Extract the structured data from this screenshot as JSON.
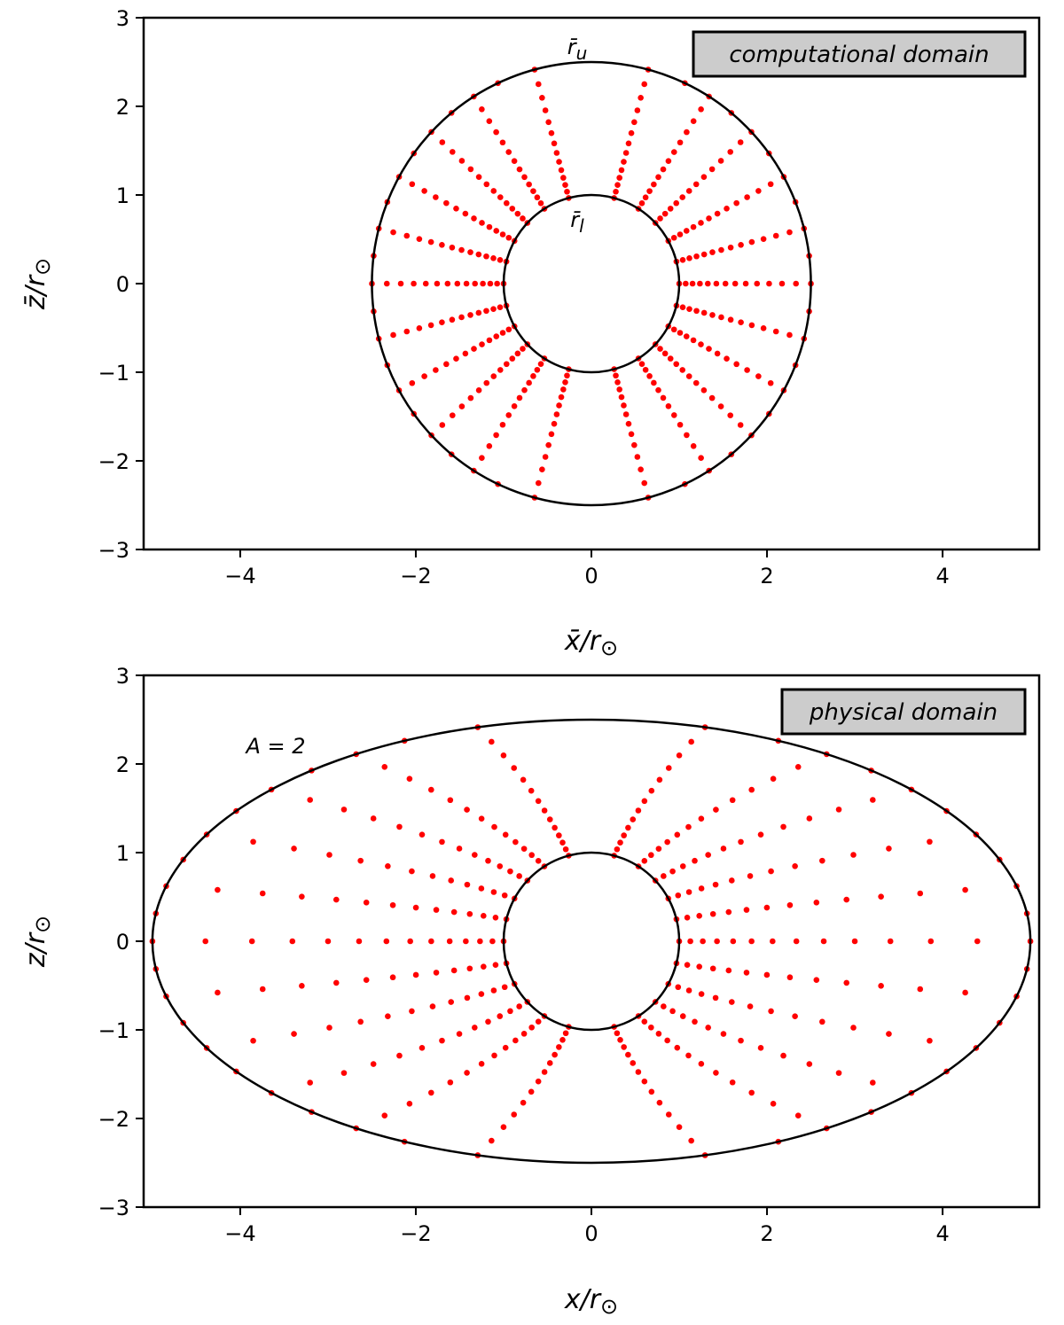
{
  "chart_data": [
    {
      "type": "scatter",
      "panel": "top",
      "legend": "computational domain",
      "xlabel": {
        "main": "x̄/r",
        "sub": "⊙"
      },
      "ylabel": {
        "main": "z̄/r",
        "sub": "⊙"
      },
      "xlim": [
        -5.1,
        5.1
      ],
      "ylim": [
        -3,
        3
      ],
      "xticks": [
        -4,
        -2,
        0,
        2,
        4
      ],
      "yticks": [
        -3,
        -2,
        -1,
        0,
        1,
        2,
        3
      ],
      "xtick_labels": [
        "−4",
        "−2",
        "0",
        "2",
        "4"
      ],
      "ytick_labels": [
        "−3",
        "−2",
        "−1",
        "0",
        "1",
        "2",
        "3"
      ],
      "inner_boundary": {
        "label_main": "r̄",
        "label_sub": "l",
        "rx": 1.0,
        "rz": 1.0
      },
      "outer_boundary": {
        "label_main": "r̄",
        "label_sub": "u",
        "rx": 2.5,
        "rz": 2.5
      },
      "grid": {
        "radial_levels": [
          1.0,
          1.074,
          1.152,
          1.236,
          1.326,
          1.423,
          1.527,
          1.638,
          1.758,
          1.886,
          2.024,
          2.171,
          2.33,
          2.5
        ],
        "angles_deg_from_x": [
          0,
          14.4,
          28.8,
          43.2,
          57.6,
          75,
          105,
          122.4,
          136.8,
          151.2,
          165.6,
          180,
          194.4,
          208.8,
          223.2,
          237.6,
          255,
          285,
          302.4,
          316.8,
          331.2,
          345.6
        ],
        "outer_boundary_angles_deg": [
          0,
          7.2,
          14.4,
          21.6,
          28.8,
          36,
          43.2,
          50.4,
          57.6,
          64.8,
          75,
          105,
          115.2,
          122.4,
          129.6,
          136.8,
          144,
          151.2,
          158.4,
          165.6,
          172.8,
          180,
          187.2,
          194.4,
          201.6,
          208.8,
          216,
          223.2,
          230.4,
          237.6,
          244.8,
          255,
          285,
          295.2,
          302.4,
          309.6,
          316.8,
          324,
          331.2,
          338.4,
          345.6,
          352.8
        ],
        "point_color": "#ff0000"
      }
    },
    {
      "type": "scatter",
      "panel": "bottom",
      "legend": "physical domain",
      "annotation": "A = 2",
      "xlabel": {
        "main": "x/r",
        "sub": "⊙"
      },
      "ylabel": {
        "main": "z/r",
        "sub": "⊙"
      },
      "xlim": [
        -5.1,
        5.1
      ],
      "ylim": [
        -3,
        3
      ],
      "xticks": [
        -4,
        -2,
        0,
        2,
        4
      ],
      "yticks": [
        -3,
        -2,
        -1,
        0,
        1,
        2,
        3
      ],
      "xtick_labels": [
        "−4",
        "−2",
        "0",
        "2",
        "4"
      ],
      "ytick_labels": [
        "−3",
        "−2",
        "−1",
        "0",
        "1",
        "2",
        "3"
      ],
      "inner_boundary": {
        "rx": 1.0,
        "rz": 1.0
      },
      "outer_boundary": {
        "rx": 5.0,
        "rz": 2.5
      },
      "grid": {
        "stretch_A": 2,
        "radial_levels": [
          1.0,
          1.074,
          1.152,
          1.236,
          1.326,
          1.423,
          1.527,
          1.638,
          1.758,
          1.886,
          2.024,
          2.171,
          2.33,
          2.5
        ],
        "angles_deg_from_x": [
          0,
          14.4,
          28.8,
          43.2,
          57.6,
          75,
          105,
          122.4,
          136.8,
          151.2,
          165.6,
          180,
          194.4,
          208.8,
          223.2,
          237.6,
          255,
          285,
          302.4,
          316.8,
          331.2,
          345.6
        ],
        "outer_boundary_angles_deg": [
          0,
          7.2,
          14.4,
          21.6,
          28.8,
          36,
          43.2,
          50.4,
          57.6,
          64.8,
          75,
          105,
          115.2,
          122.4,
          129.6,
          136.8,
          144,
          151.2,
          158.4,
          165.6,
          172.8,
          180,
          187.2,
          194.4,
          201.6,
          208.8,
          216,
          223.2,
          230.4,
          237.6,
          244.8,
          255,
          285,
          295.2,
          302.4,
          309.6,
          316.8,
          324,
          331.2,
          338.4,
          345.6,
          352.8
        ],
        "point_color": "#ff0000"
      }
    }
  ]
}
